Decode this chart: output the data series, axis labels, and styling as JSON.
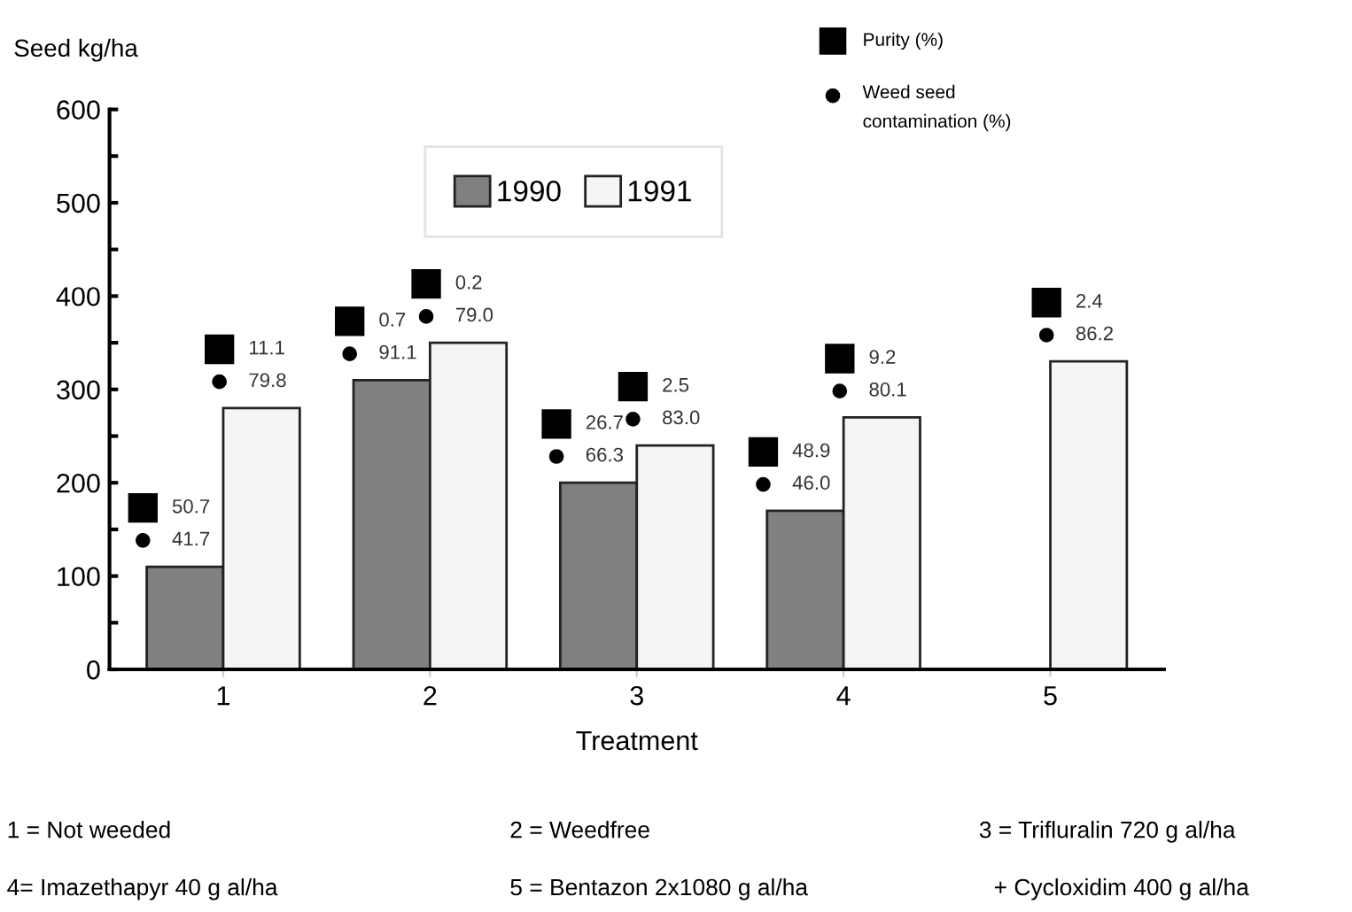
{
  "chart_data": {
    "type": "bar",
    "ylabel": "Seed kg/ha",
    "xlabel": "Treatment",
    "categories": [
      "1",
      "2",
      "3",
      "4",
      "5"
    ],
    "series": [
      {
        "name": "1990",
        "color": "#808080",
        "values": [
          110,
          310,
          200,
          170,
          null
        ]
      },
      {
        "name": "1991",
        "color": "#f5f5f5",
        "values": [
          280,
          350,
          240,
          270,
          330
        ]
      }
    ],
    "ylim": [
      0,
      600
    ],
    "yticks": [
      0,
      {
        "value": 50,
        "label": null
      },
      100,
      {
        "value": 150,
        "label": null
      },
      200,
      {
        "value": 250,
        "label": null
      },
      300,
      {
        "value": 350,
        "label": null
      },
      400,
      {
        "value": 450,
        "label": null
      },
      500,
      {
        "value": 550,
        "label": null
      },
      600
    ],
    "grid": false,
    "legend": "top",
    "annotations": [
      "50.7",
      "41.7",
      "11.1",
      "79.8",
      "0.7",
      "91.1",
      "0.2",
      "79.0",
      "26.7",
      "66.3",
      "2.5",
      "83.0",
      "48.9",
      "46.0",
      "9.2",
      "80.1",
      "2.4",
      "86.2",
      "Purity (%)",
      "Weed seed\ncontamination (%)",
      "1 = Not weeded",
      "2 = Weedfree",
      "3 = Trifluralin 720 g al/ha",
      "4= Imazethapyr 40 g al/ha",
      "5 = Bentazon 2x1080 g al/ha",
      "+ Cycloxidim 400 g al/ha"
    ]
  }
}
